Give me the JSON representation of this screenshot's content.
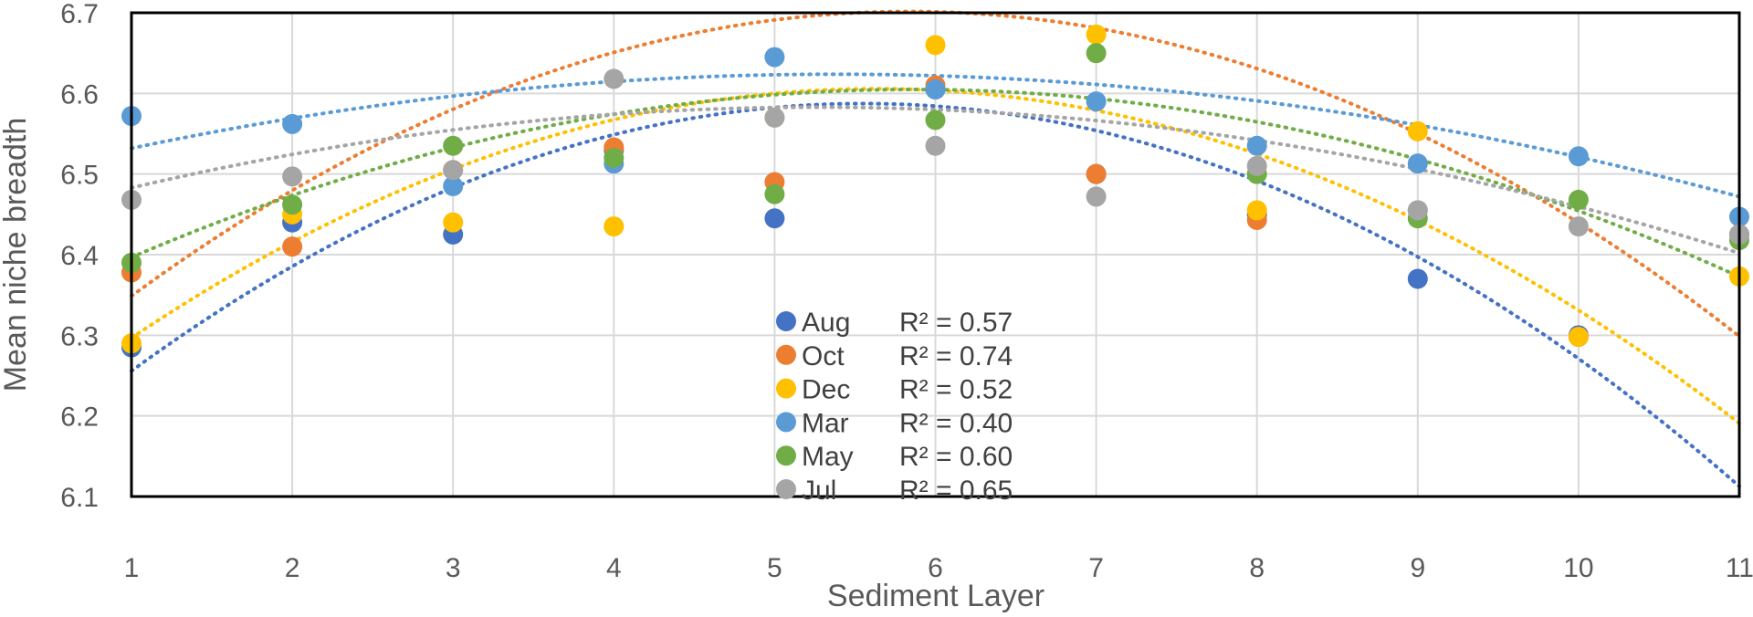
{
  "chart_data": {
    "type": "scatter",
    "title": "",
    "xlabel": "Sediment Layer",
    "ylabel": "Mean niche breadth",
    "xlim": [
      1,
      11
    ],
    "ylim": [
      6.1,
      6.7
    ],
    "x_ticks": [
      "1",
      "2",
      "3",
      "4",
      "5",
      "6",
      "7",
      "8",
      "9",
      "10",
      "11"
    ],
    "y_ticks": [
      "6.1",
      "6.2",
      "6.3",
      "6.4",
      "6.5",
      "6.6",
      "6.7"
    ],
    "grid": true,
    "trendline": "polynomial-2 (dotted)",
    "x": [
      1,
      2,
      3,
      4,
      5,
      6,
      7,
      8,
      9,
      10,
      11
    ],
    "series": [
      {
        "name": "Aug",
        "color": "#4472C4",
        "r2": "R² = 0.57",
        "values": [
          6.285,
          6.44,
          6.425,
          6.53,
          6.445,
          6.605,
          6.5,
          6.45,
          6.37,
          6.3,
          6.425
        ]
      },
      {
        "name": "Oct",
        "color": "#ED7D31",
        "r2": "R² = 0.74",
        "values": [
          6.378,
          6.41,
          6.505,
          6.533,
          6.49,
          6.61,
          6.5,
          6.443,
          6.455,
          6.298,
          6.425
        ]
      },
      {
        "name": "Dec",
        "color": "#FFC000",
        "r2": "R² = 0.52",
        "values": [
          6.29,
          6.45,
          6.44,
          6.435,
          6.57,
          6.66,
          6.673,
          6.455,
          6.553,
          6.298,
          6.373
        ]
      },
      {
        "name": "Mar",
        "color": "#5B9BD5",
        "r2": "R² = 0.40",
        "values": [
          6.572,
          6.562,
          6.485,
          6.513,
          6.645,
          6.605,
          6.59,
          6.535,
          6.513,
          6.522,
          6.447
        ]
      },
      {
        "name": "May",
        "color": "#70AD47",
        "r2": "R² = 0.60",
        "values": [
          6.39,
          6.462,
          6.535,
          6.52,
          6.475,
          6.567,
          6.65,
          6.5,
          6.445,
          6.468,
          6.418
        ]
      },
      {
        "name": "Jul",
        "color": "#A5A5A5",
        "r2": "R² = 0.65",
        "values": [
          6.468,
          6.497,
          6.505,
          6.618,
          6.57,
          6.535,
          6.472,
          6.51,
          6.455,
          6.435,
          6.425
        ]
      }
    ],
    "trendlines": [
      {
        "name": "Aug",
        "coef": [
          6.094,
          0.1777,
          -0.016
        ]
      },
      {
        "name": "Oct",
        "coef": [
          6.1876,
          0.1762,
          -0.0151
        ]
      },
      {
        "name": "Dec",
        "coef": [
          6.149,
          0.1622,
          -0.0144
        ]
      },
      {
        "name": "Mar",
        "coef": [
          6.4851,
          0.0516,
          -0.0048
        ]
      },
      {
        "name": "May",
        "coef": [
          6.3023,
          0.1032,
          -0.0088
        ]
      },
      {
        "name": "Jul",
        "coef": [
          6.4305,
          0.0579,
          -0.0055
        ]
      }
    ],
    "legend_position": "center-bottom"
  }
}
